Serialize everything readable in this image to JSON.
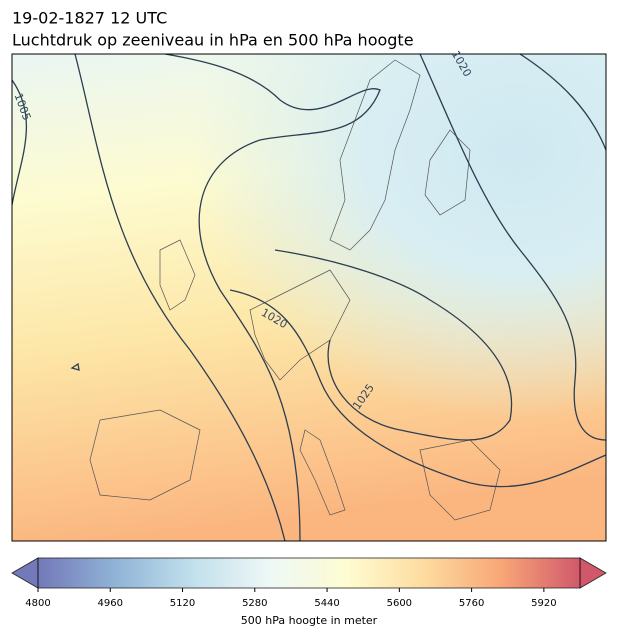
{
  "map": {
    "title": [
      "19-02-1827 12 UTC",
      "Luchtdruk op zeeniveau in hPa en 500 hPa hoogte"
    ],
    "contour_labels": [
      "1005",
      "1020",
      "1020",
      "1025"
    ],
    "colorbar": {
      "label": "500 hPa hoogte in meter",
      "xlim": [
        4800,
        6000
      ],
      "xticks": [
        4800,
        4960,
        5120,
        5280,
        5440,
        5600,
        5760,
        5920
      ],
      "colors": [
        "#5b62ad",
        "#7ea7d0",
        "#b7dbea",
        "#ecf7f5",
        "#fefcc9",
        "#fdd58f",
        "#f7965f",
        "#c93c52"
      ]
    }
  }
}
